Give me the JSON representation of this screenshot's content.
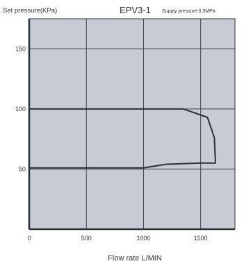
{
  "chart_data": {
    "type": "line",
    "ylabel": "Set pressure(KPa)",
    "title": "EPV3-1",
    "subtitle": "Supply pressure:0.3MPa",
    "xlabel": "Flow rate L/MIN",
    "xlim": [
      0,
      1800
    ],
    "ylim": [
      0,
      175
    ],
    "x_ticks": [
      "0",
      "500",
      "1000",
      "1500"
    ],
    "y_ticks": [
      "50",
      "100",
      "150"
    ],
    "x_tick_values": [
      0,
      500,
      1000,
      1500
    ],
    "y_tick_values": [
      50,
      100,
      150
    ],
    "grid": true,
    "series": [
      {
        "points": [
          [
            0,
            51
          ],
          [
            1000,
            51
          ],
          [
            1200,
            54
          ],
          [
            1500,
            55
          ],
          [
            1630,
            55
          ],
          [
            1620,
            76
          ],
          [
            1560,
            93
          ],
          [
            1350,
            100
          ],
          [
            0,
            100
          ]
        ]
      }
    ],
    "colors": {
      "plot_bg": "#c7ccd3",
      "grid": "#3a3f48",
      "line": "#2b2f38",
      "axis": "#2b2f38"
    }
  }
}
